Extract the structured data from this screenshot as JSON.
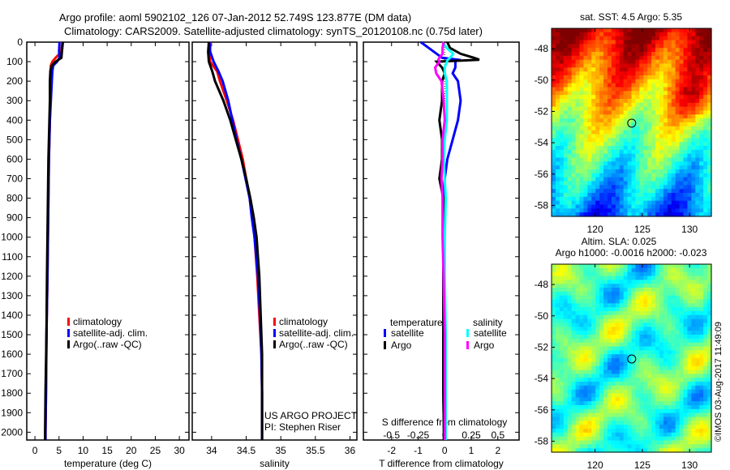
{
  "title_line1": "Argo profile: aoml 5902102_126 07-Jan-2012 52.749S 123.877E (DM data)",
  "title_line2": "Climatology: CARS2009. Satellite-adjusted climatology: synTS_20120108.nc (0.75d later)",
  "credit": "©IMOS 03-Aug-2017 11:49:09",
  "project": "US ARGO PROJECT",
  "pi": "PI: Stephen Riser",
  "colors": {
    "climatology": "#ff0000",
    "satellite": "#0000ff",
    "argo": "#000000",
    "sal_satellite": "#00ffff",
    "sal_argo": "#ff00ff"
  },
  "chart_data": [
    {
      "type": "line",
      "id": "temperature",
      "xlabel": "temperature (deg C)",
      "xlim": [
        -1.7,
        32
      ],
      "ylim": [
        2040,
        0
      ],
      "xticks": [
        "0",
        "5",
        "10",
        "15",
        "20",
        "25",
        "30"
      ],
      "xtick_values": [
        0,
        5,
        10,
        15,
        20,
        25,
        30
      ],
      "yticks": [
        "0",
        "100",
        "200",
        "300",
        "400",
        "500",
        "600",
        "700",
        "800",
        "900",
        "1000",
        "1100",
        "1200",
        "1300",
        "1400",
        "1500",
        "1600",
        "1700",
        "1800",
        "1900",
        "2000"
      ],
      "legend": [
        "climatology",
        "satellite-adj. clim.",
        "Argo(..raw -QC)"
      ],
      "depth": [
        0,
        50,
        80,
        100,
        120,
        150,
        200,
        300,
        400,
        500,
        600,
        800,
        1000,
        1200,
        1500,
        1800,
        2000,
        2040
      ],
      "series": [
        {
          "name": "climatology",
          "color": "#ff0000",
          "values": [
            5.7,
            5.5,
            4.3,
            3.6,
            3.3,
            3.2,
            3.2,
            3.2,
            3.1,
            3.0,
            2.9,
            2.8,
            2.7,
            2.6,
            2.4,
            2.3,
            2.2,
            2.2
          ]
        },
        {
          "name": "satellite-adj. clim.",
          "color": "#0000ff",
          "values": [
            5.1,
            5.0,
            5.1,
            4.6,
            3.8,
            3.6,
            3.5,
            3.3,
            3.1,
            3.0,
            2.9,
            2.8,
            2.7,
            2.6,
            2.4,
            2.3,
            2.2,
            2.2
          ]
        },
        {
          "name": "Argo(..raw -QC)",
          "color": "#000000",
          "values": [
            5.8,
            5.6,
            5.5,
            4.3,
            3.5,
            3.2,
            3.1,
            3.1,
            3.0,
            2.9,
            2.8,
            2.7,
            2.6,
            2.5,
            2.4,
            2.2,
            2.1,
            2.1
          ]
        }
      ]
    },
    {
      "type": "line",
      "id": "salinity",
      "xlabel": "salinity",
      "xlim": [
        33.72,
        36.1
      ],
      "ylim": [
        2040,
        0
      ],
      "xticks": [
        "34",
        "34.5",
        "35",
        "35.5",
        "36"
      ],
      "xtick_values": [
        34,
        34.5,
        35,
        35.5,
        36
      ],
      "legend": [
        "climatology",
        "satellite-adj. clim.",
        "Argo(..raw -QC)"
      ],
      "depth": [
        0,
        50,
        100,
        150,
        200,
        300,
        400,
        500,
        600,
        700,
        800,
        900,
        1000,
        1200,
        1400,
        1600,
        1800,
        2000,
        2040
      ],
      "series": [
        {
          "name": "climatology",
          "color": "#ff0000",
          "values": [
            33.99,
            33.97,
            33.98,
            34.08,
            34.12,
            34.22,
            34.31,
            34.38,
            34.45,
            34.5,
            34.55,
            34.59,
            34.62,
            34.66,
            34.69,
            34.72,
            34.73,
            34.73,
            34.73
          ]
        },
        {
          "name": "satellite-adj. clim.",
          "color": "#0000ff",
          "values": [
            33.97,
            33.98,
            34.03,
            34.1,
            34.16,
            34.24,
            34.3,
            34.36,
            34.43,
            34.49,
            34.55,
            34.58,
            34.62,
            34.67,
            34.7,
            34.72,
            34.73,
            34.73,
            34.73
          ]
        },
        {
          "name": "Argo(..raw -QC)",
          "color": "#000000",
          "values": [
            33.96,
            33.95,
            33.96,
            34.01,
            34.05,
            34.17,
            34.27,
            34.35,
            34.43,
            34.5,
            34.56,
            34.61,
            34.65,
            34.69,
            34.71,
            34.73,
            34.73,
            34.73,
            34.73
          ]
        }
      ]
    },
    {
      "type": "line",
      "id": "difference",
      "xlabel": "T difference from climatology",
      "x2label": "S difference from climatology",
      "xlim": [
        -3.06,
        2.8
      ],
      "ylim": [
        2040,
        0
      ],
      "xticks": [
        "-2",
        "-1",
        "0",
        "1",
        "2"
      ],
      "xtick_values": [
        -2,
        -1,
        0,
        1,
        2
      ],
      "x2ticks": [
        "-0.5",
        "-0.25",
        "0",
        "0.25",
        "0.5"
      ],
      "x2tick_values": [
        -0.5,
        -0.25,
        0,
        0.25,
        0.5
      ],
      "legend_headers": [
        "temperature",
        "salinity"
      ],
      "legend": [
        "satellite",
        "Argo",
        "satellite",
        "Argo"
      ],
      "depth": [
        0,
        30,
        60,
        80,
        90,
        100,
        130,
        160,
        200,
        300,
        400,
        500,
        600,
        700,
        800,
        1000,
        1200,
        1500,
        1800,
        2000,
        2040
      ],
      "series": [
        {
          "name": "T satellite",
          "color": "#0000ff",
          "units": "T",
          "values": [
            -0.9,
            -0.6,
            -0.3,
            -0.1,
            0.5,
            0.4,
            0.4,
            0.3,
            0.5,
            0.6,
            0.5,
            0.3,
            0.1,
            0.0,
            -0.05,
            -0.05,
            -0.05,
            -0.05,
            -0.05,
            -0.03,
            -0.03
          ]
        },
        {
          "name": "T Argo",
          "color": "#000000",
          "units": "T",
          "values": [
            0.1,
            0.2,
            0.6,
            1.1,
            1.3,
            -0.3,
            -0.1,
            0.0,
            -0.1,
            -0.1,
            -0.2,
            -0.1,
            -0.1,
            -0.2,
            -0.05,
            -0.05,
            -0.05,
            -0.05,
            -0.05,
            -0.03,
            -0.03
          ]
        },
        {
          "name": "S satellite",
          "color": "#00ffff",
          "units": "S",
          "values": [
            -0.02,
            0.02,
            0.08,
            0.05,
            0.03,
            0.02,
            0.0,
            0.0,
            0.02,
            0.02,
            0.02,
            0.0,
            -0.01,
            0.0,
            0.01,
            0.0,
            0.0,
            0.01,
            0.01,
            0.01,
            0.01
          ]
        },
        {
          "name": "S Argo",
          "color": "#ff00ff",
          "units": "S",
          "values": [
            -0.01,
            -0.02,
            -0.02,
            -0.05,
            -0.06,
            -0.05,
            -0.09,
            -0.08,
            -0.03,
            -0.01,
            0.0,
            -0.02,
            -0.02,
            -0.03,
            -0.02,
            -0.02,
            -0.01,
            0.0,
            0.0,
            0.0,
            0.0
          ]
        }
      ]
    },
    {
      "type": "heatmap",
      "id": "sst_map",
      "title": "sat. SST: 4.5 Argo: 5.35",
      "xlim": [
        115.4,
        132.3
      ],
      "ylim": [
        -58.7,
        -46.7
      ],
      "xticks": [
        "120",
        "125",
        "130"
      ],
      "xtick_values": [
        120,
        125,
        130
      ],
      "yticks": [
        "-48",
        "-50",
        "-52",
        "-54",
        "-56",
        "-58"
      ],
      "ytick_values": [
        -48,
        -50,
        -52,
        -54,
        -56,
        -58
      ],
      "marker": {
        "lon": 123.877,
        "lat": -52.749
      }
    },
    {
      "type": "heatmap",
      "id": "sla_map",
      "title": "Altim. SLA: 0.025",
      "subtitle": "Argo h1000: -0.0016 h2000: -0.023",
      "xlim": [
        115.4,
        132.3
      ],
      "ylim": [
        -58.7,
        -46.7
      ],
      "xticks": [
        "120",
        "125",
        "130"
      ],
      "xtick_values": [
        120,
        125,
        130
      ],
      "yticks": [
        "-48",
        "-50",
        "-52",
        "-54",
        "-56",
        "-58"
      ],
      "ytick_values": [
        -48,
        -50,
        -52,
        -54,
        -56,
        -58
      ],
      "marker": {
        "lon": 123.877,
        "lat": -52.749
      }
    }
  ]
}
